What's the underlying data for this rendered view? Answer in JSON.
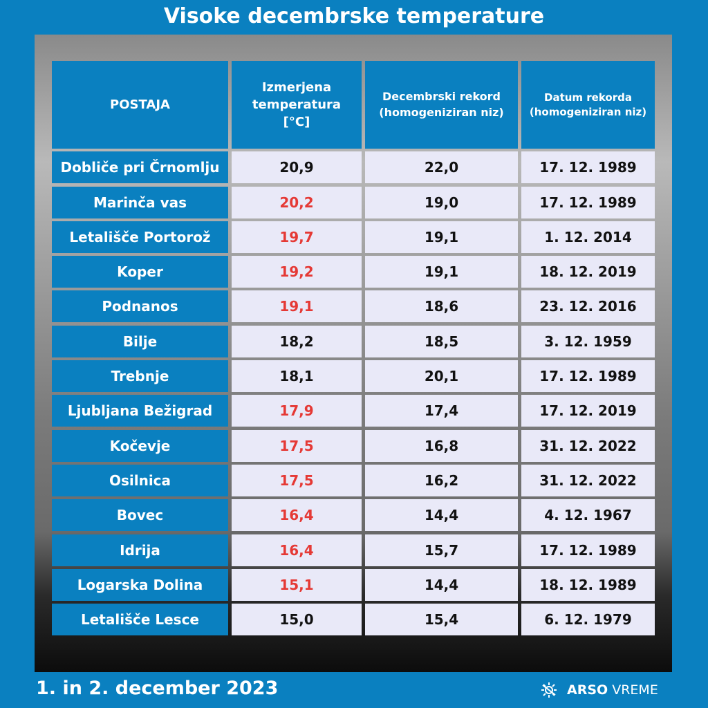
{
  "title": "Visoke decembrske temperature",
  "footer": {
    "date": "1. in 2. december 2023",
    "brand_bold": "ARSO",
    "brand_light": "VREME"
  },
  "colors": {
    "header": "#0a80c0",
    "cell": "#e9e9f8",
    "record_exceeded": "#e53935"
  },
  "chart_data": {
    "type": "table",
    "title": "Visoke decembrske temperature",
    "columns": [
      "POSTAJA",
      "Izmerjena temperatura [°C]",
      "Decembrski rekord (homogeniziran niz)",
      "Datum rekorda (homogeniziran niz)"
    ],
    "rows": [
      {
        "station": "Dobliče pri Črnomlju",
        "measured": "20,9",
        "record": "22,0",
        "date": "17. 12. 1989",
        "new_record": false
      },
      {
        "station": "Marinča vas",
        "measured": "20,2",
        "record": "19,0",
        "date": "17. 12. 1989",
        "new_record": true
      },
      {
        "station": "Letališče Portorož",
        "measured": "19,7",
        "record": "19,1",
        "date": "1. 12. 2014",
        "new_record": true
      },
      {
        "station": "Koper",
        "measured": "19,2",
        "record": "19,1",
        "date": "18. 12. 2019",
        "new_record": true
      },
      {
        "station": "Podnanos",
        "measured": "19,1",
        "record": "18,6",
        "date": "23. 12. 2016",
        "new_record": true
      },
      {
        "station": "Bilje",
        "measured": "18,2",
        "record": "18,5",
        "date": "3. 12. 1959",
        "new_record": false
      },
      {
        "station": "Trebnje",
        "measured": "18,1",
        "record": "20,1",
        "date": "17. 12. 1989",
        "new_record": false
      },
      {
        "station": "Ljubljana Bežigrad",
        "measured": "17,9",
        "record": "17,4",
        "date": "17. 12. 2019",
        "new_record": true
      },
      {
        "station": "Kočevje",
        "measured": "17,5",
        "record": "16,8",
        "date": "31. 12. 2022",
        "new_record": true
      },
      {
        "station": "Osilnica",
        "measured": "17,5",
        "record": "16,2",
        "date": "31. 12. 2022",
        "new_record": true
      },
      {
        "station": "Bovec",
        "measured": "16,4",
        "record": "14,4",
        "date": "4. 12. 1967",
        "new_record": true
      },
      {
        "station": "Idrija",
        "measured": "16,4",
        "record": "15,7",
        "date": "17. 12. 1989",
        "new_record": true
      },
      {
        "station": "Logarska Dolina",
        "measured": "15,1",
        "record": "14,4",
        "date": "18. 12. 1989",
        "new_record": true
      },
      {
        "station": "Letališče Lesce",
        "measured": "15,0",
        "record": "15,4",
        "date": "6. 12. 1979",
        "new_record": false
      }
    ]
  }
}
